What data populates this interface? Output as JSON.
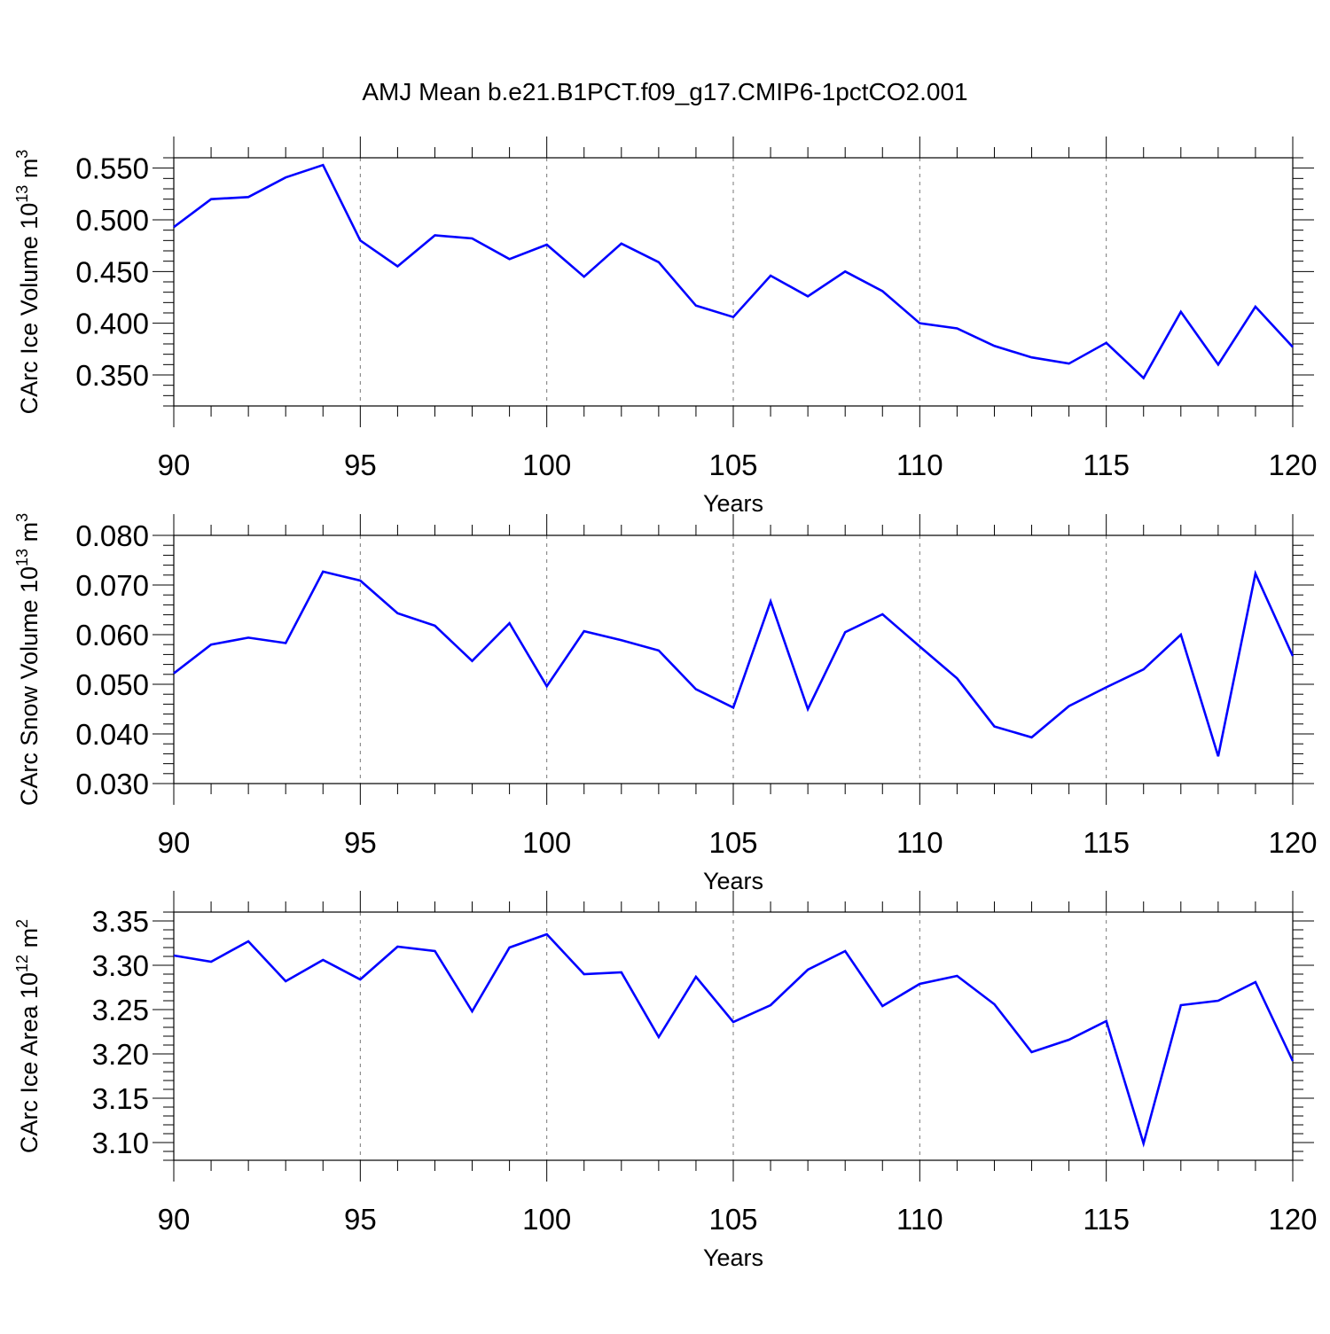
{
  "title": "AMJ Mean b.e21.B1PCT.f09_g17.CMIP6-1pctCO2.001",
  "colors": {
    "line": "#0000ff",
    "axis": "#000000",
    "grid": "#777777"
  },
  "chart_data": [
    {
      "type": "line",
      "ylabel_main": "CArc Ice Volume 10",
      "ylabel_exp": "13",
      "ylabel_unit": " m",
      "ylabel_unit_exp": "3",
      "xlabel": "Years",
      "xlim": [
        90,
        120
      ],
      "ylim": [
        0.32,
        0.56
      ],
      "x_ticks": [
        90,
        95,
        100,
        105,
        110,
        115,
        120
      ],
      "x_tick_labels": [
        "90",
        "95",
        "100",
        "105",
        "110",
        "115",
        "120"
      ],
      "y_ticks": [
        0.35,
        0.4,
        0.45,
        0.5,
        0.55
      ],
      "y_tick_labels": [
        "0.350",
        "0.400",
        "0.450",
        "0.500",
        "0.550"
      ],
      "y_minor_step": 0.01,
      "x": [
        90,
        91,
        92,
        93,
        94,
        95,
        96,
        97,
        98,
        99,
        100,
        101,
        102,
        103,
        104,
        105,
        106,
        107,
        108,
        109,
        110,
        111,
        112,
        113,
        114,
        115,
        116,
        117,
        118,
        119,
        120
      ],
      "values": [
        0.493,
        0.52,
        0.522,
        0.541,
        0.553,
        0.48,
        0.455,
        0.485,
        0.482,
        0.462,
        0.476,
        0.445,
        0.477,
        0.459,
        0.417,
        0.406,
        0.446,
        0.426,
        0.45,
        0.431,
        0.4,
        0.395,
        0.378,
        0.367,
        0.361,
        0.381,
        0.347,
        0.411,
        0.36,
        0.416,
        0.377
      ],
      "grid": "vertical dashed at major x ticks"
    },
    {
      "type": "line",
      "ylabel_main": "CArc Snow Volume 10",
      "ylabel_exp": "13",
      "ylabel_unit": " m",
      "ylabel_unit_exp": "3",
      "xlabel": "Years",
      "xlim": [
        90,
        120
      ],
      "ylim": [
        0.03,
        0.08
      ],
      "x_ticks": [
        90,
        95,
        100,
        105,
        110,
        115,
        120
      ],
      "x_tick_labels": [
        "90",
        "95",
        "100",
        "105",
        "110",
        "115",
        "120"
      ],
      "y_ticks": [
        0.03,
        0.04,
        0.05,
        0.06,
        0.07,
        0.08
      ],
      "y_tick_labels": [
        "0.030",
        "0.040",
        "0.050",
        "0.060",
        "0.070",
        "0.080"
      ],
      "y_minor_step": 0.002,
      "x": [
        90,
        91,
        92,
        93,
        94,
        95,
        96,
        97,
        98,
        99,
        100,
        101,
        102,
        103,
        104,
        105,
        106,
        107,
        108,
        109,
        110,
        111,
        112,
        113,
        114,
        115,
        116,
        117,
        118,
        119,
        120
      ],
      "values": [
        0.0522,
        0.058,
        0.0594,
        0.0583,
        0.0727,
        0.0709,
        0.0643,
        0.0618,
        0.0547,
        0.0623,
        0.0496,
        0.0607,
        0.0589,
        0.0568,
        0.049,
        0.0453,
        0.0667,
        0.045,
        0.0605,
        0.0641,
        0.0576,
        0.0512,
        0.0415,
        0.0393,
        0.0456,
        0.0494,
        0.053,
        0.06,
        0.0355,
        0.0723,
        0.0557
      ],
      "grid": "vertical dashed at major x ticks"
    },
    {
      "type": "line",
      "ylabel_main": "CArc Ice Area 10",
      "ylabel_exp": "12",
      "ylabel_unit": " m",
      "ylabel_unit_exp": "2",
      "xlabel": "Years",
      "xlim": [
        90,
        120
      ],
      "ylim": [
        3.08,
        3.36
      ],
      "x_ticks": [
        90,
        95,
        100,
        105,
        110,
        115,
        120
      ],
      "x_tick_labels": [
        "90",
        "95",
        "100",
        "105",
        "110",
        "115",
        "120"
      ],
      "y_ticks": [
        3.1,
        3.15,
        3.2,
        3.25,
        3.3,
        3.35
      ],
      "y_tick_labels": [
        "3.10",
        "3.15",
        "3.20",
        "3.25",
        "3.30",
        "3.35"
      ],
      "y_minor_step": 0.01,
      "x": [
        90,
        91,
        92,
        93,
        94,
        95,
        96,
        97,
        98,
        99,
        100,
        101,
        102,
        103,
        104,
        105,
        106,
        107,
        108,
        109,
        110,
        111,
        112,
        113,
        114,
        115,
        116,
        117,
        118,
        119,
        120
      ],
      "values": [
        3.311,
        3.304,
        3.327,
        3.282,
        3.306,
        3.284,
        3.321,
        3.316,
        3.248,
        3.32,
        3.335,
        3.29,
        3.292,
        3.219,
        3.287,
        3.236,
        3.255,
        3.295,
        3.316,
        3.254,
        3.279,
        3.288,
        3.256,
        3.202,
        3.216,
        3.237,
        3.099,
        3.255,
        3.26,
        3.281,
        3.192
      ],
      "grid": "vertical dashed at major x ticks"
    }
  ]
}
